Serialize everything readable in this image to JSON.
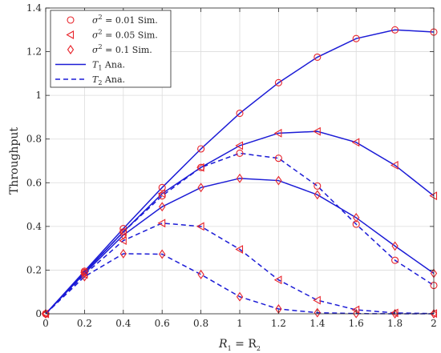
{
  "chart_data": {
    "type": "line",
    "x": [
      0,
      0.2,
      0.4,
      0.6,
      0.8,
      1.0,
      1.2,
      1.4,
      1.6,
      1.8,
      2.0
    ],
    "xlim": [
      0,
      2
    ],
    "ylim": [
      0,
      1.4
    ],
    "xticks": [
      "0",
      "0.2",
      "0.4",
      "0.6",
      "0.8",
      "1",
      "1.2",
      "1.4",
      "1.6",
      "1.8",
      "2"
    ],
    "yticks": [
      "0",
      "0.2",
      "0.4",
      "0.6",
      "0.8",
      "1",
      "1.2",
      "1.4"
    ],
    "xlabel": {
      "prefix": "R",
      "sub1": "1",
      "mid": " = R",
      "sub2": "2"
    },
    "ylabel": "Throughput",
    "grid": true,
    "legend_position": "top-left",
    "colors": {
      "sim": "#e8242b",
      "ana": "#1b1bd6",
      "grid": "#dcdcdc",
      "axis": "#262626"
    },
    "legend": [
      {
        "marker": "circle",
        "prefix": "σ",
        "sup": "2",
        "text": " = 0.01 Sim."
      },
      {
        "marker": "triangle-left",
        "prefix": "σ",
        "sup": "2",
        "text": " = 0.05 Sim."
      },
      {
        "marker": "diamond",
        "prefix": "σ",
        "sup": "2",
        "text": " = 0.1 Sim."
      },
      {
        "line": "solid",
        "prefix": "T",
        "sub": "1",
        "text": " Ana."
      },
      {
        "line": "dashed",
        "prefix": "T",
        "sub": "2",
        "text": " Ana."
      }
    ],
    "series": [
      {
        "line": "solid",
        "marker": "circle",
        "values": [
          0,
          0.195,
          0.39,
          0.578,
          0.755,
          0.918,
          1.058,
          1.175,
          1.26,
          1.3,
          1.29
        ]
      },
      {
        "line": "solid",
        "marker": "triangle-left",
        "values": [
          0,
          0.19,
          0.375,
          0.55,
          0.67,
          0.77,
          0.827,
          0.835,
          0.785,
          0.68,
          0.54
        ]
      },
      {
        "line": "solid",
        "marker": "diamond",
        "values": [
          0,
          0.185,
          0.36,
          0.49,
          0.578,
          0.62,
          0.61,
          0.545,
          0.44,
          0.31,
          0.185
        ]
      },
      {
        "line": "dashed",
        "marker": "circle",
        "values": [
          0,
          0.19,
          0.375,
          0.54,
          0.67,
          0.735,
          0.712,
          0.585,
          0.41,
          0.245,
          0.13
        ]
      },
      {
        "line": "dashed",
        "marker": "triangle-left",
        "values": [
          0,
          0.18,
          0.335,
          0.415,
          0.4,
          0.295,
          0.155,
          0.062,
          0.018,
          0.004,
          0.001
        ]
      },
      {
        "line": "dashed",
        "marker": "diamond",
        "values": [
          0,
          0.17,
          0.275,
          0.273,
          0.18,
          0.078,
          0.022,
          0.005,
          0.001,
          0.0,
          0.0
        ]
      }
    ]
  }
}
